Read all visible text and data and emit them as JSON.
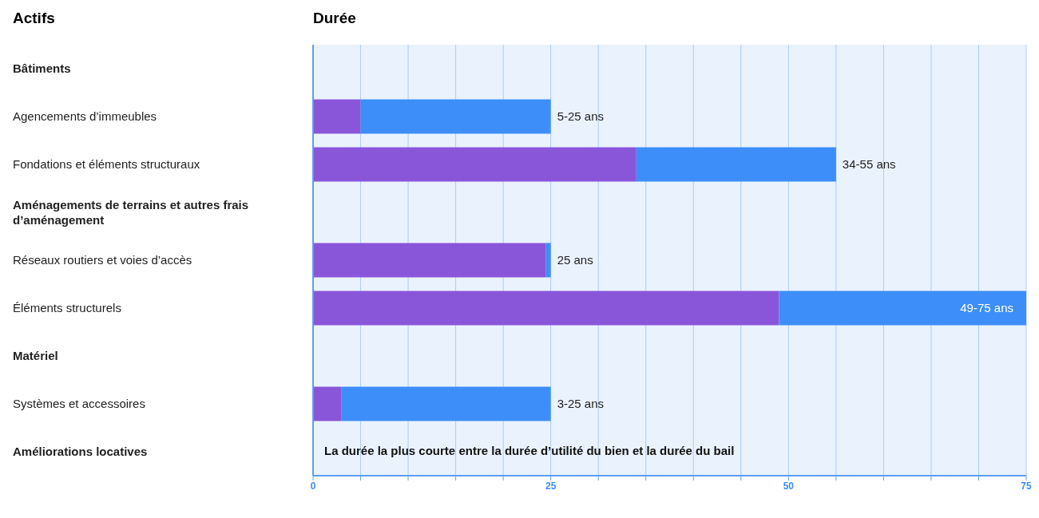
{
  "chart_data": {
    "type": "bar",
    "orientation": "horizontal",
    "stacked": true,
    "xlabel": "Durée",
    "ylabel": "Actifs",
    "categories": [
      "Bâtiments",
      "Agencements d’immeubles",
      "Fondations et éléments structuraux",
      "Aménagements de terrains et autres frais d’aménagement",
      "Réseaux routiers et voies d’accès",
      "Éléments structurels",
      "Matériel",
      "Systèmes et accessoires",
      "Améliorations locatives"
    ],
    "series": [
      {
        "color": "#8a56d9",
        "values": [
          null,
          5,
          34,
          null,
          24.5,
          49,
          null,
          3,
          null
        ]
      },
      {
        "color": "#3d8ef8",
        "values": [
          null,
          20,
          21,
          null,
          0.5,
          26,
          null,
          22,
          null
        ]
      }
    ],
    "totals": [
      null,
      "5-25 ans",
      "34-55 ans",
      null,
      "25 ans",
      "49-75 ans",
      null,
      "3-25 ans",
      null
    ],
    "xlim": [
      0,
      75
    ],
    "xticks": [
      0,
      {
        "value": 5,
        "label": null
      },
      {
        "value": 10,
        "label": null
      },
      {
        "value": 15,
        "label": null
      },
      {
        "value": 20,
        "label": null
      },
      25,
      {
        "value": 30,
        "label": null
      },
      {
        "value": 35,
        "label": null
      },
      {
        "value": 40,
        "label": null
      },
      {
        "value": 45,
        "label": null
      },
      50,
      {
        "value": 55,
        "label": null
      },
      {
        "value": 60,
        "label": null
      },
      {
        "value": 65,
        "label": null
      },
      {
        "value": 70,
        "label": null
      },
      75
    ],
    "grid": "x",
    "annotations": [
      "La durée la plus courte entre la durée d’utilité du bien et la durée du bail"
    ]
  }
}
